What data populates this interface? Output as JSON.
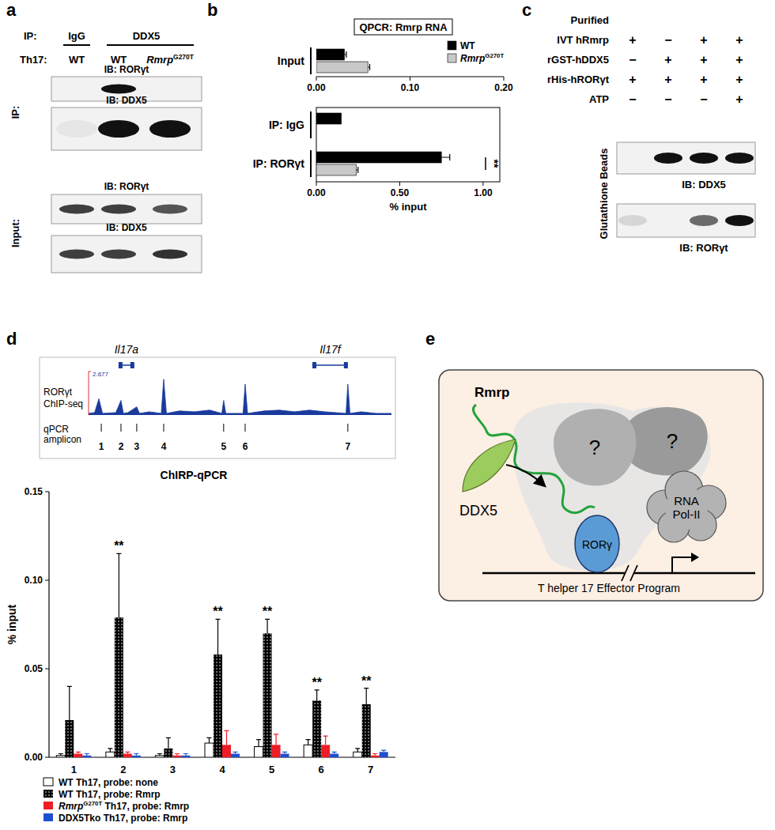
{
  "panel_labels": [
    "a",
    "b",
    "c",
    "d",
    "e"
  ],
  "panel_a": {
    "ip_label": "IP:",
    "ip_groups": [
      "IgG",
      "DDX5"
    ],
    "th17_label": "Th17:",
    "lanes": [
      "WT",
      "WT",
      "RmrpG270T"
    ],
    "lane_sup": "G270T",
    "sections": [
      {
        "label": "IP:",
        "blots": [
          "IB: RORγt",
          "IB: DDX5"
        ]
      },
      {
        "label": "Input:",
        "blots": [
          "IB: RORγt",
          "IB: DDX5"
        ]
      }
    ]
  },
  "panel_c": {
    "header": "Purified",
    "rows": [
      {
        "label": "IVT hRmrp",
        "signs": [
          "+",
          "−",
          "+",
          "+"
        ]
      },
      {
        "label": "rGST-hDDX5",
        "signs": [
          "−",
          "+",
          "+",
          "+"
        ]
      },
      {
        "label": "rHis-hRORγt",
        "signs": [
          "+",
          "+",
          "+",
          "+"
        ]
      },
      {
        "label": "ATP",
        "signs": [
          "−",
          "−",
          "−",
          "+"
        ]
      }
    ],
    "side_label": "Glutathione Beads",
    "blots": [
      "IB: DDX5",
      "IB: RORγt"
    ]
  },
  "panel_e": {
    "rna": "Rmrp",
    "helicase": "DDX5",
    "unknown": "?",
    "factor": "RORγ",
    "polymerase": [
      "RNA",
      "Pol-II"
    ],
    "program": "T helper 17 Effector Program"
  },
  "chart_data": [
    {
      "type": "bar",
      "orientation": "horizontal",
      "title": "QPCR: Rmrp RNA",
      "categories": [
        "Input"
      ],
      "series": [
        {
          "name": "WT",
          "color": "#000000",
          "values": [
            0.03
          ],
          "errors": [
            0.002
          ]
        },
        {
          "name": "RmrpG270T",
          "sup": "G270T",
          "color": "#c8c8c8",
          "values": [
            0.055
          ],
          "errors": [
            0.002
          ]
        }
      ],
      "xlim": [
        0,
        0.2
      ],
      "xticks": [
        {
          "value": 0,
          "label": "0.00"
        },
        {
          "value": 0.1,
          "label": "0.10"
        },
        {
          "value": 0.2,
          "label": "0.20"
        }
      ],
      "legend": "upper right"
    },
    {
      "type": "bar",
      "orientation": "horizontal",
      "categories": [
        "IP: IgG",
        "IP: RORγt"
      ],
      "series": [
        {
          "color": "#000000",
          "values": [
            0.15,
            0.75
          ],
          "errors": [
            null,
            0.05
          ]
        },
        {
          "color": "#c8c8c8",
          "values": [
            null,
            0.24
          ],
          "errors": [
            null,
            0.01
          ]
        }
      ],
      "xlim": [
        0,
        1.1
      ],
      "xticks": [
        {
          "value": 0,
          "label": "0.00"
        },
        {
          "value": 0.5,
          "label": "0.50"
        },
        {
          "value": 1,
          "label": "1.00"
        }
      ],
      "x_label": "% input",
      "annotations": [
        {
          "category": "IP: RORγt",
          "text": "**"
        }
      ]
    },
    {
      "type": "area",
      "title": [
        "RORγt",
        "ChIP-seq"
      ],
      "x": [
        0,
        2,
        3.4,
        4.6,
        9,
        9.8,
        10.7,
        11.5,
        13,
        15.9,
        16.8,
        20,
        24,
        24.8,
        25.7,
        30,
        35,
        40,
        44,
        44.6,
        45.3,
        51,
        51.7,
        52.5,
        58,
        63,
        68,
        73,
        78,
        85,
        85.6,
        86.3,
        90,
        95,
        100
      ],
      "values": [
        0.1,
        0.15,
        1.0,
        0.1,
        0.15,
        0.5,
        0.9,
        0.1,
        0.15,
        0.5,
        0.1,
        0.2,
        0.1,
        2.2,
        0.1,
        0.25,
        0.2,
        0.3,
        0.1,
        0.9,
        0.1,
        0.1,
        1.9,
        0.1,
        0.25,
        0.3,
        0.2,
        0.3,
        0.2,
        0.1,
        1.9,
        0.1,
        0.2,
        0.1,
        0.1
      ],
      "xlim": [
        0,
        100
      ],
      "ylim": [
        0,
        2.677
      ],
      "yticks": [
        2.677
      ],
      "tick_labels": "y",
      "color": "#1a3a9c",
      "genes": [
        {
          "name": "Il17a",
          "start": 9.9,
          "end": 15.1
        },
        {
          "name": "Il17f",
          "start": 73.9,
          "end": 85.6
        }
      ],
      "amplicons": {
        "label": [
          "qPCR",
          "amplicon"
        ],
        "x": [
          4.2,
          10.7,
          15.9,
          24.8,
          44.6,
          51.7,
          85.6
        ],
        "labels": [
          "1",
          "2",
          "3",
          "4",
          "5",
          "6",
          "7"
        ]
      }
    },
    {
      "type": "bar",
      "title": "ChIRP-qPCR",
      "categories": [
        "1",
        "2",
        "3",
        "4",
        "5",
        "6",
        "7"
      ],
      "y_label": "% input",
      "ylim": [
        0,
        0.15
      ],
      "yticks": [
        {
          "value": 0,
          "label": "0.00"
        },
        0.05,
        {
          "value": 0.1,
          "label": "0.10"
        },
        0.15
      ],
      "legend": "bottom",
      "series": [
        {
          "name": "WT Th17, probe: none",
          "color": "#ffffff",
          "values": [
            0.001,
            0.003,
            0.001,
            0.008,
            0.006,
            0.007,
            0.003
          ],
          "errors": [
            0.001,
            0.002,
            0.001,
            0.003,
            0.004,
            0.003,
            0.002
          ]
        },
        {
          "name": "WT Th17, probe: Rmrp",
          "color": "#000000",
          "values": [
            0.021,
            0.079,
            0.005,
            0.058,
            0.07,
            0.032,
            0.03
          ],
          "errors": [
            0.019,
            0.036,
            0.006,
            0.02,
            0.008,
            0.006,
            0.009
          ]
        },
        {
          "name": "RmrpG270T Th17, probe: Rmrp",
          "sup": "G270T",
          "color": "#ee1c25",
          "values": [
            0.002,
            0.002,
            0.001,
            0.007,
            0.007,
            0.007,
            0.001
          ],
          "errors": [
            0.001,
            0.001,
            0.001,
            0.008,
            0.006,
            0.005,
            0.001
          ]
        },
        {
          "name": "DDX5Tko Th17, probe: Rmrp",
          "color": "#1f4fd1",
          "values": [
            0.001,
            0.001,
            0.001,
            0.002,
            0.002,
            0.002,
            0.003
          ],
          "errors": [
            0.001,
            0.001,
            0.001,
            0.001,
            0.001,
            0.001,
            0.001
          ]
        }
      ],
      "annotations": [
        {
          "category": "2",
          "text": "**"
        },
        {
          "category": "4",
          "text": "**"
        },
        {
          "category": "5",
          "text": "**"
        },
        {
          "category": "6",
          "text": "**"
        },
        {
          "category": "7",
          "text": "**"
        }
      ]
    }
  ]
}
